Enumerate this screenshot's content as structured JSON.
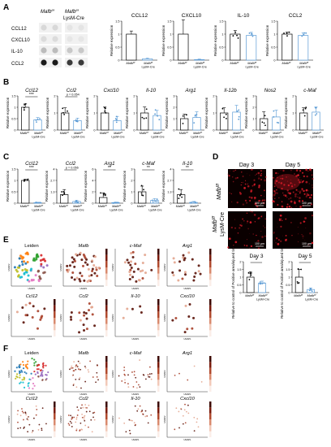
{
  "panels": [
    "A",
    "B",
    "C",
    "D",
    "E",
    "F"
  ],
  "panelA": {
    "col_labels": [
      "Mafb",
      "f/f",
      "Mafb",
      "f/f",
      "LysM-Cre"
    ],
    "row_labels": [
      "CCL12",
      "CXCL10",
      "IL-10",
      "CCL2"
    ],
    "chart_titles": [
      "CCL12",
      "CXCL10",
      "IL-10",
      "CCL2"
    ],
    "ylabel": "Relative expression",
    "xtick_a": "Mafb",
    "xtick_a_sup": "f/f",
    "xtick_b": "Mafb",
    "xtick_b_sup": "f/f",
    "xtick_b2": "LysM-Cre"
  },
  "panelB": {
    "titles": [
      "Ccl12",
      "Ccl2",
      "Cxcl10",
      "Il-10",
      "Arg1",
      "Il-12b",
      "Nos2",
      "c-Maf"
    ],
    "ylabel": "Relative expression",
    "ccl2_pvalue": "p = 0.054",
    "sig_stars": [
      "***",
      "*",
      "*",
      ""
    ]
  },
  "panelC": {
    "titles": [
      "Ccl12",
      "Ccl2",
      "Arg1",
      "c-Maf",
      "Il-10"
    ],
    "ylabel": "Relative expression",
    "ccl2_pvalue": "p = 0.056",
    "sig_stars": [
      "***",
      "**",
      "**",
      "**"
    ]
  },
  "panelD": {
    "col_labels": [
      "Day 3",
      "Day 5"
    ],
    "row_labels": [
      "Mafb",
      "f/f",
      "Mafb",
      "f/f",
      "LysM-Cre"
    ],
    "scale_label": "100 µm",
    "chart_titles": [
      "Day 3",
      "Day 5"
    ],
    "ylabel": "Relative to control of Positive area/injured tissue (%)",
    "sig_star": "*"
  },
  "panelE": {
    "titles": [
      "Leiden",
      "Mafb",
      "c-Maf",
      "Arg1",
      "Ccl12",
      "Ccl2",
      "Il-10",
      "Cxcl10"
    ],
    "axis_x": "UMAP1",
    "axis_y": "UMAP2"
  },
  "panelF": {
    "titles": [
      "Leiden",
      "Mafb",
      "c-Maf",
      "Arg1",
      "Ccl12",
      "Ccl2",
      "Il-10",
      "Cxcl10"
    ],
    "axis_x": "UMAP1",
    "axis_y": "UMAP2"
  },
  "colors": {
    "ctrl_bar": "#ffffff",
    "ko_bar": "#5b9bd5",
    "fluor": "#e11d2a",
    "heat": "#7a1b0c"
  }
}
